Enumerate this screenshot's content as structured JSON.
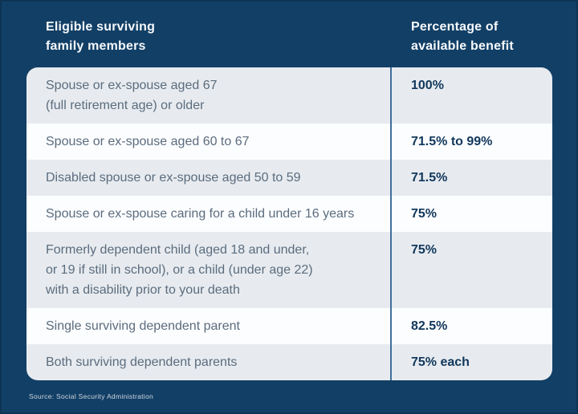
{
  "colors": {
    "background": "#123f66",
    "row_gray": "#e7ebef",
    "row_white": "#fcfdfe",
    "divider": "#3f6f9b",
    "member_text": "#5b6c7e",
    "value_text": "#11375c",
    "header_text": "#f6f9fb"
  },
  "header": {
    "col1": "Eligible surviving\nfamily members",
    "col2": "Percentage of\navailable benefit"
  },
  "table": {
    "rows": [
      {
        "member": "Spouse or ex-spouse aged 67\n(full retirement age) or older",
        "percentage": "100%"
      },
      {
        "member": "Spouse or ex-spouse aged 60 to 67",
        "percentage": "71.5% to 99%"
      },
      {
        "member": "Disabled spouse or ex-spouse aged 50 to 59",
        "percentage": "71.5%"
      },
      {
        "member": "Spouse or ex-spouse caring for a child under 16 years",
        "percentage": "75%"
      },
      {
        "member": "Formerly dependent child (aged 18 and under,\nor 19 if still in school), or a child (under age 22)\nwith a disability prior to your death",
        "percentage": "75%"
      },
      {
        "member": "Single surviving dependent parent",
        "percentage": "82.5%"
      },
      {
        "member": "Both surviving dependent parents",
        "percentage": "75% each"
      }
    ]
  },
  "source": "Source: Social Security Administration",
  "chart_data": {
    "type": "table",
    "title": "",
    "columns": [
      "Eligible surviving family members",
      "Percentage of available benefit"
    ],
    "rows": [
      [
        "Spouse or ex-spouse aged 67 (full retirement age) or older",
        "100%"
      ],
      [
        "Spouse or ex-spouse aged 60 to 67",
        "71.5% to 99%"
      ],
      [
        "Disabled spouse or ex-spouse aged 50 to 59",
        "71.5%"
      ],
      [
        "Spouse or ex-spouse caring for a child under 16 years",
        "75%"
      ],
      [
        "Formerly dependent child (aged 18 and under, or 19 if still in school), or a child (under age 22) with a disability prior to your death",
        "75%"
      ],
      [
        "Single surviving dependent parent",
        "82.5%"
      ],
      [
        "Both surviving dependent parents",
        "75% each"
      ]
    ],
    "source": "Source: Social Security Administration",
    "layout_hints": {
      "alternating_row_shading": true,
      "column_divider": "vertical steel-blue line",
      "background": "dark navy"
    }
  }
}
